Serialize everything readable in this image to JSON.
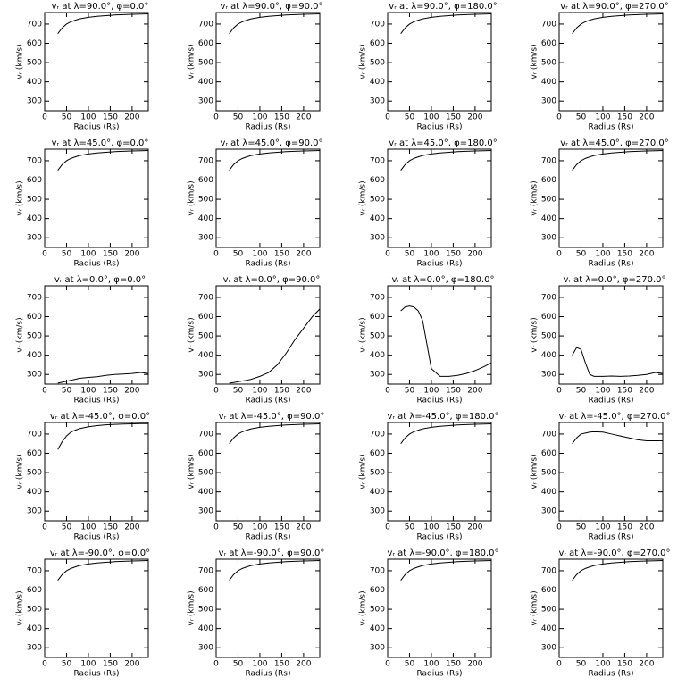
{
  "chart_data": [
    {
      "type": "line",
      "title": "vᵣ at λ=90.0°, φ=0.0°",
      "xlabel": "Radius (Rs)",
      "ylabel": "vᵣ (km/s)",
      "x": [
        30,
        40,
        50,
        60,
        70,
        80,
        100,
        120,
        140,
        160,
        180,
        200,
        220,
        237
      ],
      "values": [
        650,
        680,
        700,
        712,
        720,
        727,
        735,
        740,
        744,
        747,
        749,
        751,
        752,
        753
      ],
      "xlim": [
        0,
        237
      ],
      "ylim": [
        250,
        760
      ],
      "xticks": [
        0,
        50,
        100,
        150,
        200
      ],
      "yticks": [
        300,
        400,
        500,
        600,
        700
      ]
    },
    {
      "type": "line",
      "title": "vᵣ at λ=90.0°, φ=90.0°",
      "xlabel": "Radius (Rs)",
      "ylabel": "vᵣ (km/s)",
      "x": [
        30,
        40,
        50,
        60,
        70,
        80,
        100,
        120,
        140,
        160,
        180,
        200,
        220,
        237
      ],
      "values": [
        650,
        680,
        700,
        712,
        720,
        727,
        735,
        740,
        744,
        747,
        749,
        751,
        752,
        753
      ],
      "xlim": [
        0,
        237
      ],
      "ylim": [
        250,
        760
      ],
      "xticks": [
        0,
        50,
        100,
        150,
        200
      ],
      "yticks": [
        300,
        400,
        500,
        600,
        700
      ]
    },
    {
      "type": "line",
      "title": "vᵣ at λ=90.0°, φ=180.0°",
      "xlabel": "Radius (Rs)",
      "ylabel": "vᵣ (km/s)",
      "x": [
        30,
        40,
        50,
        60,
        70,
        80,
        100,
        120,
        140,
        160,
        180,
        200,
        220,
        237
      ],
      "values": [
        650,
        680,
        700,
        712,
        720,
        727,
        735,
        740,
        744,
        747,
        749,
        751,
        752,
        753
      ],
      "xlim": [
        0,
        237
      ],
      "ylim": [
        250,
        760
      ],
      "xticks": [
        0,
        50,
        100,
        150,
        200
      ],
      "yticks": [
        300,
        400,
        500,
        600,
        700
      ]
    },
    {
      "type": "line",
      "title": "vᵣ at λ=90.0°, φ=270.0°",
      "xlabel": "Radius (Rs)",
      "ylabel": "vᵣ (km/s)",
      "x": [
        30,
        40,
        50,
        60,
        70,
        80,
        100,
        120,
        140,
        160,
        180,
        200,
        220,
        237
      ],
      "values": [
        650,
        680,
        700,
        712,
        720,
        727,
        735,
        740,
        744,
        747,
        749,
        751,
        752,
        753
      ],
      "xlim": [
        0,
        237
      ],
      "ylim": [
        250,
        760
      ],
      "xticks": [
        0,
        50,
        100,
        150,
        200
      ],
      "yticks": [
        300,
        400,
        500,
        600,
        700
      ]
    },
    {
      "type": "line",
      "title": "vᵣ at λ=45.0°, φ=0.0°",
      "xlabel": "Radius (Rs)",
      "ylabel": "vᵣ (km/s)",
      "x": [
        30,
        40,
        50,
        60,
        70,
        80,
        100,
        120,
        140,
        160,
        180,
        200,
        220,
        237
      ],
      "values": [
        650,
        680,
        700,
        712,
        720,
        727,
        735,
        740,
        744,
        747,
        749,
        751,
        752,
        753
      ],
      "xlim": [
        0,
        237
      ],
      "ylim": [
        250,
        760
      ],
      "xticks": [
        0,
        50,
        100,
        150,
        200
      ],
      "yticks": [
        300,
        400,
        500,
        600,
        700
      ]
    },
    {
      "type": "line",
      "title": "vᵣ at λ=45.0°, φ=90.0°",
      "xlabel": "Radius (Rs)",
      "ylabel": "vᵣ (km/s)",
      "x": [
        30,
        40,
        50,
        60,
        70,
        80,
        100,
        120,
        140,
        160,
        180,
        200,
        220,
        237
      ],
      "values": [
        650,
        680,
        700,
        712,
        720,
        727,
        735,
        740,
        744,
        747,
        749,
        751,
        752,
        753
      ],
      "xlim": [
        0,
        237
      ],
      "ylim": [
        250,
        760
      ],
      "xticks": [
        0,
        50,
        100,
        150,
        200
      ],
      "yticks": [
        300,
        400,
        500,
        600,
        700
      ]
    },
    {
      "type": "line",
      "title": "vᵣ at λ=45.0°, φ=180.0°",
      "xlabel": "Radius (Rs)",
      "ylabel": "vᵣ (km/s)",
      "x": [
        30,
        40,
        50,
        60,
        70,
        80,
        100,
        120,
        140,
        160,
        180,
        200,
        220,
        237
      ],
      "values": [
        650,
        680,
        700,
        712,
        720,
        727,
        735,
        740,
        744,
        747,
        749,
        751,
        752,
        753
      ],
      "xlim": [
        0,
        237
      ],
      "ylim": [
        250,
        760
      ],
      "xticks": [
        0,
        50,
        100,
        150,
        200
      ],
      "yticks": [
        300,
        400,
        500,
        600,
        700
      ]
    },
    {
      "type": "line",
      "title": "vᵣ at λ=45.0°, φ=270.0°",
      "xlabel": "Radius (Rs)",
      "ylabel": "vᵣ (km/s)",
      "x": [
        30,
        40,
        50,
        60,
        70,
        80,
        100,
        120,
        140,
        160,
        180,
        200,
        220,
        237
      ],
      "values": [
        650,
        680,
        700,
        712,
        720,
        727,
        735,
        740,
        744,
        747,
        749,
        751,
        752,
        753
      ],
      "xlim": [
        0,
        237
      ],
      "ylim": [
        250,
        760
      ],
      "xticks": [
        0,
        50,
        100,
        150,
        200
      ],
      "yticks": [
        300,
        400,
        500,
        600,
        700
      ]
    },
    {
      "type": "line",
      "title": "vᵣ at λ=0.0°, φ=0.0°",
      "xlabel": "Radius (Rs)",
      "ylabel": "vᵣ (km/s)",
      "x": [
        30,
        40,
        50,
        60,
        70,
        80,
        100,
        120,
        140,
        160,
        180,
        200,
        220,
        237
      ],
      "values": [
        255,
        260,
        265,
        270,
        275,
        280,
        285,
        288,
        295,
        300,
        302,
        305,
        310,
        305
      ],
      "xlim": [
        0,
        237
      ],
      "ylim": [
        250,
        760
      ],
      "xticks": [
        0,
        50,
        100,
        150,
        200
      ],
      "yticks": [
        300,
        400,
        500,
        600,
        700
      ]
    },
    {
      "type": "line",
      "title": "vᵣ at λ=0.0°, φ=90.0°",
      "xlabel": "Radius (Rs)",
      "ylabel": "vᵣ (km/s)",
      "x": [
        30,
        40,
        50,
        60,
        70,
        80,
        100,
        120,
        140,
        160,
        180,
        200,
        220,
        237
      ],
      "values": [
        255,
        258,
        262,
        266,
        270,
        275,
        290,
        310,
        350,
        410,
        480,
        540,
        600,
        640
      ],
      "xlim": [
        0,
        237
      ],
      "ylim": [
        250,
        760
      ],
      "xticks": [
        0,
        50,
        100,
        150,
        200
      ],
      "yticks": [
        300,
        400,
        500,
        600,
        700
      ]
    },
    {
      "type": "line",
      "title": "vᵣ at λ=0.0°, φ=180.0°",
      "xlabel": "Radius (Rs)",
      "ylabel": "vᵣ (km/s)",
      "x": [
        30,
        40,
        50,
        60,
        70,
        80,
        100,
        120,
        140,
        160,
        180,
        200,
        220,
        237
      ],
      "values": [
        630,
        650,
        655,
        650,
        630,
        580,
        330,
        290,
        290,
        295,
        305,
        320,
        340,
        360
      ],
      "xlim": [
        0,
        237
      ],
      "ylim": [
        250,
        760
      ],
      "xticks": [
        0,
        50,
        100,
        150,
        200
      ],
      "yticks": [
        300,
        400,
        500,
        600,
        700
      ]
    },
    {
      "type": "line",
      "title": "vᵣ at λ=0.0°, φ=270.0°",
      "xlabel": "Radius (Rs)",
      "ylabel": "vᵣ (km/s)",
      "x": [
        30,
        40,
        50,
        60,
        70,
        80,
        100,
        120,
        140,
        160,
        180,
        200,
        220,
        237
      ],
      "values": [
        400,
        440,
        430,
        360,
        300,
        290,
        290,
        292,
        290,
        292,
        295,
        300,
        310,
        305
      ],
      "xlim": [
        0,
        237
      ],
      "ylim": [
        250,
        760
      ],
      "xticks": [
        0,
        50,
        100,
        150,
        200
      ],
      "yticks": [
        300,
        400,
        500,
        600,
        700
      ]
    },
    {
      "type": "line",
      "title": "vᵣ at λ=-45.0°, φ=0.0°",
      "xlabel": "Radius (Rs)",
      "ylabel": "vᵣ (km/s)",
      "x": [
        30,
        40,
        50,
        60,
        70,
        80,
        100,
        120,
        140,
        160,
        180,
        200,
        220,
        237
      ],
      "values": [
        620,
        660,
        690,
        710,
        720,
        728,
        738,
        744,
        748,
        750,
        752,
        753,
        754,
        754
      ],
      "xlim": [
        0,
        237
      ],
      "ylim": [
        250,
        760
      ],
      "xticks": [
        0,
        50,
        100,
        150,
        200
      ],
      "yticks": [
        300,
        400,
        500,
        600,
        700
      ]
    },
    {
      "type": "line",
      "title": "vᵣ at λ=-45.0°, φ=90.0°",
      "xlabel": "Radius (Rs)",
      "ylabel": "vᵣ (km/s)",
      "x": [
        30,
        40,
        50,
        60,
        70,
        80,
        100,
        120,
        140,
        160,
        180,
        200,
        220,
        237
      ],
      "values": [
        650,
        680,
        700,
        712,
        720,
        727,
        735,
        740,
        744,
        747,
        749,
        751,
        752,
        753
      ],
      "xlim": [
        0,
        237
      ],
      "ylim": [
        250,
        760
      ],
      "xticks": [
        0,
        50,
        100,
        150,
        200
      ],
      "yticks": [
        300,
        400,
        500,
        600,
        700
      ]
    },
    {
      "type": "line",
      "title": "vᵣ at λ=-45.0°, φ=180.0°",
      "xlabel": "Radius (Rs)",
      "ylabel": "vᵣ (km/s)",
      "x": [
        30,
        40,
        50,
        60,
        70,
        80,
        100,
        120,
        140,
        160,
        180,
        200,
        220,
        237
      ],
      "values": [
        650,
        680,
        700,
        712,
        720,
        727,
        735,
        740,
        744,
        747,
        749,
        751,
        752,
        753
      ],
      "xlim": [
        0,
        237
      ],
      "ylim": [
        250,
        760
      ],
      "xticks": [
        0,
        50,
        100,
        150,
        200
      ],
      "yticks": [
        300,
        400,
        500,
        600,
        700
      ]
    },
    {
      "type": "line",
      "title": "vᵣ at λ=-45.0°, φ=270.0°",
      "xlabel": "Radius (Rs)",
      "ylabel": "vᵣ (km/s)",
      "x": [
        30,
        40,
        50,
        60,
        70,
        80,
        100,
        120,
        140,
        160,
        180,
        200,
        220,
        237
      ],
      "values": [
        650,
        680,
        700,
        705,
        710,
        712,
        710,
        700,
        690,
        680,
        670,
        665,
        665,
        665
      ],
      "xlim": [
        0,
        237
      ],
      "ylim": [
        250,
        760
      ],
      "xticks": [
        0,
        50,
        100,
        150,
        200
      ],
      "yticks": [
        300,
        400,
        500,
        600,
        700
      ]
    },
    {
      "type": "line",
      "title": "vᵣ at λ=-90.0°, φ=0.0°",
      "xlabel": "Radius (Rs)",
      "ylabel": "vᵣ (km/s)",
      "x": [
        30,
        40,
        50,
        60,
        70,
        80,
        100,
        120,
        140,
        160,
        180,
        200,
        220,
        237
      ],
      "values": [
        650,
        680,
        700,
        712,
        720,
        727,
        735,
        740,
        744,
        747,
        749,
        751,
        752,
        753
      ],
      "xlim": [
        0,
        237
      ],
      "ylim": [
        250,
        760
      ],
      "xticks": [
        0,
        50,
        100,
        150,
        200
      ],
      "yticks": [
        300,
        400,
        500,
        600,
        700
      ]
    },
    {
      "type": "line",
      "title": "vᵣ at λ=-90.0°, φ=90.0°",
      "xlabel": "Radius (Rs)",
      "ylabel": "vᵣ (km/s)",
      "x": [
        30,
        40,
        50,
        60,
        70,
        80,
        100,
        120,
        140,
        160,
        180,
        200,
        220,
        237
      ],
      "values": [
        650,
        680,
        700,
        712,
        720,
        727,
        735,
        740,
        744,
        747,
        749,
        751,
        752,
        753
      ],
      "xlim": [
        0,
        237
      ],
      "ylim": [
        250,
        760
      ],
      "xticks": [
        0,
        50,
        100,
        150,
        200
      ],
      "yticks": [
        300,
        400,
        500,
        600,
        700
      ]
    },
    {
      "type": "line",
      "title": "vᵣ at λ=-90.0°, φ=180.0°",
      "xlabel": "Radius (Rs)",
      "ylabel": "vᵣ (km/s)",
      "x": [
        30,
        40,
        50,
        60,
        70,
        80,
        100,
        120,
        140,
        160,
        180,
        200,
        220,
        237
      ],
      "values": [
        650,
        680,
        700,
        712,
        720,
        727,
        735,
        740,
        744,
        747,
        749,
        751,
        752,
        753
      ],
      "xlim": [
        0,
        237
      ],
      "ylim": [
        250,
        760
      ],
      "xticks": [
        0,
        50,
        100,
        150,
        200
      ],
      "yticks": [
        300,
        400,
        500,
        600,
        700
      ]
    },
    {
      "type": "line",
      "title": "vᵣ at λ=-90.0°, φ=270.0°",
      "xlabel": "Radius (Rs)",
      "ylabel": "vᵣ (km/s)",
      "x": [
        30,
        40,
        50,
        60,
        70,
        80,
        100,
        120,
        140,
        160,
        180,
        200,
        220,
        237
      ],
      "values": [
        650,
        680,
        700,
        712,
        720,
        727,
        735,
        740,
        744,
        747,
        749,
        751,
        752,
        753
      ],
      "xlim": [
        0,
        237
      ],
      "ylim": [
        250,
        760
      ],
      "xticks": [
        0,
        50,
        100,
        150,
        200
      ],
      "yticks": [
        300,
        400,
        500,
        600,
        700
      ]
    }
  ]
}
